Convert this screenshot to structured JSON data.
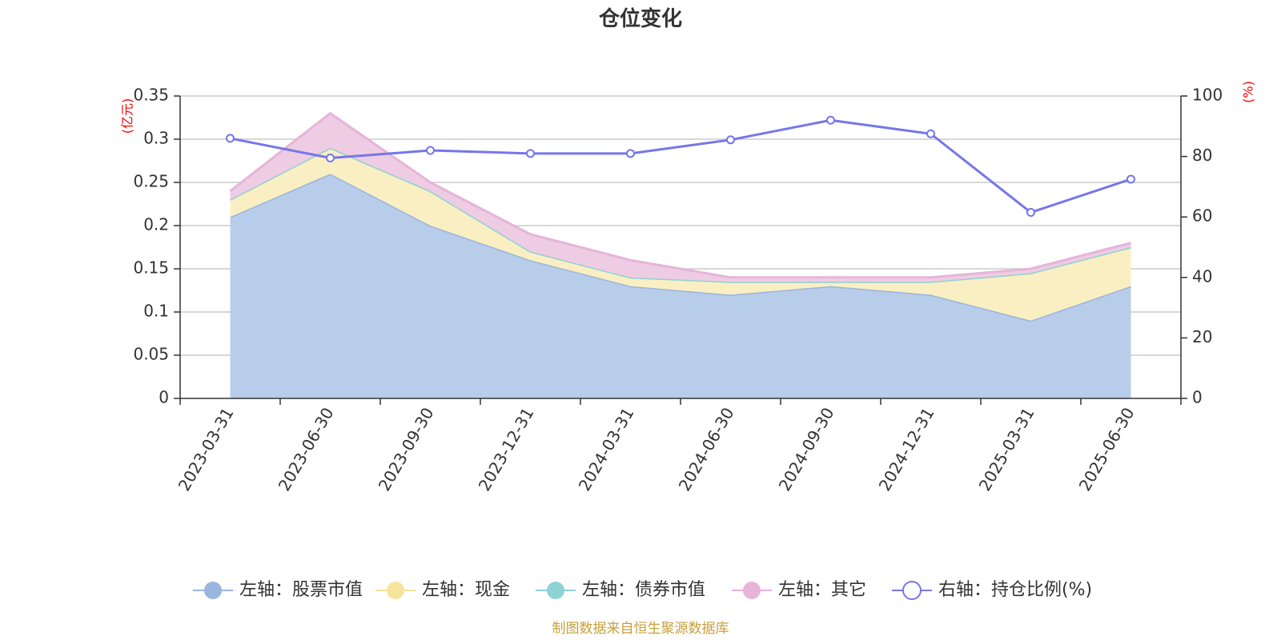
{
  "chart_data": {
    "type": "area",
    "title": "仓位变化",
    "categories": [
      "2023-03-31",
      "2023-06-30",
      "2023-09-30",
      "2023-12-31",
      "2024-03-31",
      "2024-06-30",
      "2024-09-30",
      "2024-12-31",
      "2025-03-31",
      "2025-06-30"
    ],
    "left_axis": {
      "unit": "(亿元)",
      "range": [
        0,
        0.35
      ],
      "ticks": [
        "0",
        "0.05",
        "0.1",
        "0.15",
        "0.2",
        "0.25",
        "0.3",
        "0.35"
      ]
    },
    "right_axis": {
      "unit": "(%)",
      "range": [
        0,
        100
      ],
      "ticks": [
        "0",
        "20",
        "40",
        "60",
        "80",
        "100"
      ]
    },
    "series": [
      {
        "name": "左轴：股票市值",
        "axis": "left",
        "kind": "stacked-area",
        "color": "#9ab5de",
        "fill": "#b8cdea",
        "values": [
          0.21,
          0.26,
          0.2,
          0.16,
          0.13,
          0.12,
          0.13,
          0.12,
          0.09,
          0.13
        ]
      },
      {
        "name": "左轴：现金",
        "axis": "left",
        "kind": "stacked-area",
        "color": "#f5e49a",
        "fill": "#faefc3",
        "values": [
          0.02,
          0.03,
          0.04,
          0.01,
          0.01,
          0.015,
          0.005,
          0.015,
          0.055,
          0.045
        ]
      },
      {
        "name": "左轴：债券市值",
        "axis": "left",
        "kind": "stacked-area",
        "color": "#8fd2d4",
        "fill": "#bfe6e7",
        "values": [
          0,
          0,
          0,
          0,
          0,
          0,
          0,
          0,
          0,
          0
        ]
      },
      {
        "name": "左轴：其它",
        "axis": "left",
        "kind": "stacked-area",
        "color": "#e6b4d9",
        "fill": "#eecce3",
        "values": [
          0.01,
          0.04,
          0.01,
          0.02,
          0.02,
          0.005,
          0.005,
          0.005,
          0.005,
          0.005
        ]
      },
      {
        "name": "右轴：持仓比例(%)",
        "axis": "right",
        "kind": "line",
        "color": "#7577ea",
        "values": [
          86,
          79.5,
          82,
          81,
          81,
          85.5,
          92,
          87.5,
          61.5,
          72.5
        ]
      }
    ],
    "grid": true,
    "legend_position": "bottom"
  },
  "footer": {
    "source": "制图数据来自恒生聚源数据库"
  }
}
